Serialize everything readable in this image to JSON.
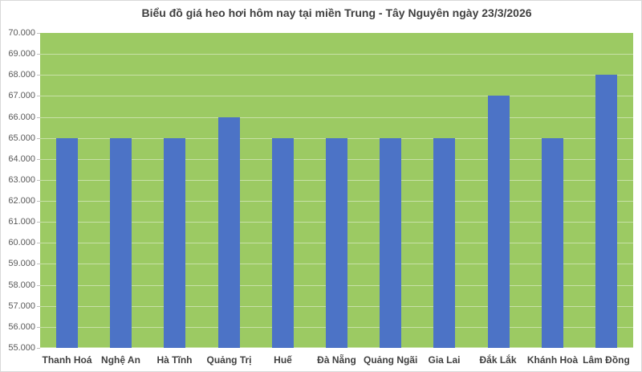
{
  "window": {
    "background": "#FFFFFF",
    "border_color": "#D9D9D9"
  },
  "chart_data": {
    "type": "bar",
    "title": "Biểu đồ giá heo hơi hôm nay tại miền Trung - Tây Nguyên ngày 23/3/2026",
    "categories": [
      "Thanh Hoá",
      "Nghệ An",
      "Hà Tĩnh",
      "Quảng Trị",
      "Huế",
      "Đà Nẵng",
      "Quảng Ngãi",
      "Gia Lai",
      "Đắk Lắk",
      "Khánh Hoà",
      "Lâm Đồng"
    ],
    "values": [
      65000,
      65000,
      65000,
      66000,
      65000,
      65000,
      65000,
      65000,
      67000,
      65000,
      68000
    ],
    "xlabel": "",
    "ylabel": "",
    "ylim": [
      55000,
      70000
    ],
    "ytick_step": 1000,
    "ytick_labels": [
      "70.000",
      "69.000",
      "68.000",
      "67.000",
      "66.000",
      "65.000",
      "64.000",
      "63.000",
      "62.000",
      "61.000",
      "60.000",
      "59.000",
      "58.000",
      "57.000",
      "56.000",
      "55.000"
    ],
    "grid": true,
    "legend": false,
    "colors": {
      "bar": "#4C73C6",
      "plot_background": "#9CCA63",
      "gridline": "#C8E1A7",
      "axis_tick": "#BFBFBF",
      "ytick_text": "#595959",
      "xtick_text": "#404040",
      "title_text": "#404040"
    }
  }
}
